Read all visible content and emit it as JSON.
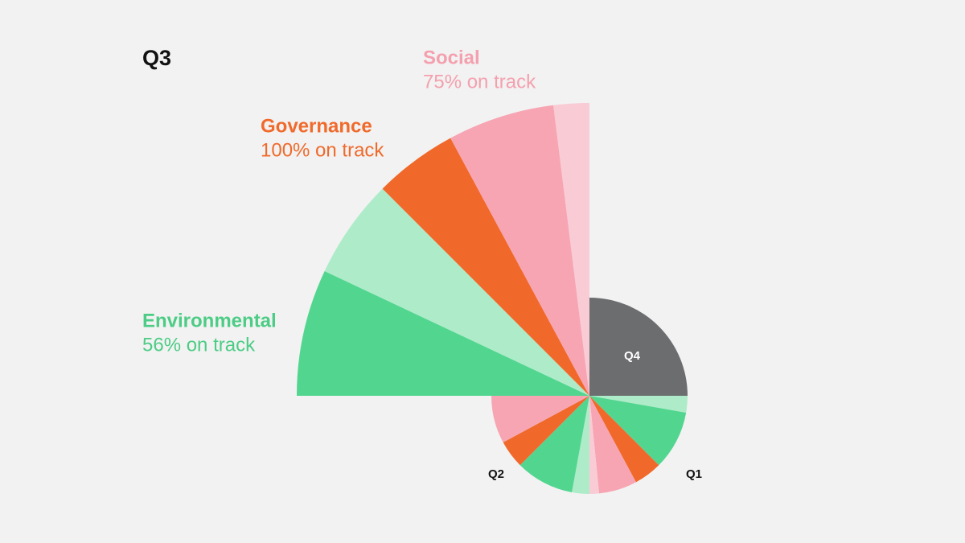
{
  "chart_data": {
    "type": "quarter-rose",
    "categories": [
      "Environmental",
      "Governance",
      "Social"
    ],
    "colors": [
      "#52d68f",
      "#f0692a",
      "#f7a5b3"
    ],
    "light_colors": [
      "#aeecc9",
      "#f9c0a3",
      "#f9cbd4"
    ],
    "label_colors": [
      "#4ccc85",
      "#f06a2b",
      "#f4a0ae"
    ],
    "inactive_color": "#6c6d6f",
    "weights": [
      50,
      18.5,
      31.5
    ],
    "quarters": [
      {
        "name": "Q1",
        "values": [
          78,
          100,
          80
        ]
      },
      {
        "name": "Q2",
        "values": [
          77,
          100,
          100
        ]
      },
      {
        "name": "Q3",
        "values": [
          56,
          100,
          75
        ],
        "value_labels": [
          "56% on track",
          "100% on track",
          "75% on track"
        ]
      },
      {
        "name": "Q4",
        "values": [
          null,
          null,
          null
        ]
      }
    ]
  }
}
